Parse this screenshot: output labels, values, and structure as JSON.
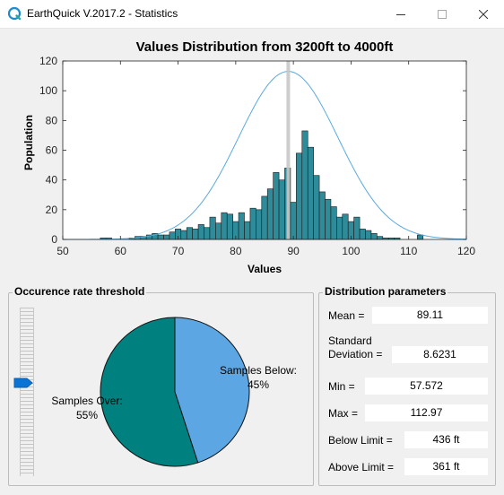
{
  "window": {
    "title": "EarthQuick V.2017.2 - Statistics",
    "accent": "#1e8cc8"
  },
  "chart_data": {
    "type": "bar",
    "title": "Values Distribution from 3200ft to 4000ft",
    "xlabel": "Values",
    "ylabel": "Population",
    "xlim": [
      50,
      120
    ],
    "ylim": [
      0,
      120
    ],
    "xticks": [
      50,
      60,
      70,
      80,
      90,
      100,
      110,
      120
    ],
    "yticks": [
      0,
      20,
      40,
      60,
      80,
      100,
      120
    ],
    "bar_color": "#2e8c9a",
    "curve_color": "#5aa9dd",
    "marker_color": "#c8c8c8",
    "bin_width": 1,
    "bins": [
      {
        "x": 57,
        "y": 1
      },
      {
        "x": 58,
        "y": 1
      },
      {
        "x": 62,
        "y": 1
      },
      {
        "x": 63,
        "y": 2
      },
      {
        "x": 64,
        "y": 2
      },
      {
        "x": 65,
        "y": 3
      },
      {
        "x": 66,
        "y": 4
      },
      {
        "x": 67,
        "y": 3
      },
      {
        "x": 68,
        "y": 3
      },
      {
        "x": 69,
        "y": 5
      },
      {
        "x": 70,
        "y": 7
      },
      {
        "x": 71,
        "y": 6
      },
      {
        "x": 72,
        "y": 8
      },
      {
        "x": 73,
        "y": 7
      },
      {
        "x": 74,
        "y": 10
      },
      {
        "x": 75,
        "y": 8
      },
      {
        "x": 76,
        "y": 15
      },
      {
        "x": 77,
        "y": 11
      },
      {
        "x": 78,
        "y": 18
      },
      {
        "x": 79,
        "y": 17
      },
      {
        "x": 80,
        "y": 12
      },
      {
        "x": 81,
        "y": 18
      },
      {
        "x": 82,
        "y": 12
      },
      {
        "x": 83,
        "y": 21
      },
      {
        "x": 84,
        "y": 20
      },
      {
        "x": 85,
        "y": 29
      },
      {
        "x": 86,
        "y": 34
      },
      {
        "x": 87,
        "y": 45
      },
      {
        "x": 88,
        "y": 40
      },
      {
        "x": 89,
        "y": 48
      },
      {
        "x": 90,
        "y": 25
      },
      {
        "x": 91,
        "y": 58
      },
      {
        "x": 92,
        "y": 73
      },
      {
        "x": 93,
        "y": 62
      },
      {
        "x": 94,
        "y": 43
      },
      {
        "x": 95,
        "y": 32
      },
      {
        "x": 96,
        "y": 27
      },
      {
        "x": 97,
        "y": 22
      },
      {
        "x": 98,
        "y": 15
      },
      {
        "x": 99,
        "y": 17
      },
      {
        "x": 100,
        "y": 12
      },
      {
        "x": 101,
        "y": 15
      },
      {
        "x": 102,
        "y": 7
      },
      {
        "x": 103,
        "y": 6
      },
      {
        "x": 104,
        "y": 4
      },
      {
        "x": 105,
        "y": 2
      },
      {
        "x": 106,
        "y": 1
      },
      {
        "x": 107,
        "y": 1
      },
      {
        "x": 108,
        "y": 1
      },
      {
        "x": 112,
        "y": 3
      }
    ],
    "normal_curve": {
      "mean": 89.11,
      "std": 8.6231,
      "peak": 113
    },
    "threshold_marker": 89.11
  },
  "threshold_panel": {
    "title": "Occurence rate threshold",
    "slider_value": 0.45,
    "pie": {
      "slices": [
        {
          "label": "Samples Below:",
          "pct_label": "45%",
          "value": 45,
          "color": "#5ba6e3"
        },
        {
          "label": "Samples Over:",
          "pct_label": "55%",
          "value": 55,
          "color": "#00807f"
        }
      ]
    }
  },
  "params_panel": {
    "title": "Distribution parameters",
    "rows": [
      {
        "label": "Mean =",
        "value": "89.11"
      },
      {
        "label": "Standard\nDeviation =",
        "value": "8.6231"
      },
      {
        "label": "Min =",
        "value": "57.572"
      },
      {
        "label": "Max =",
        "value": "112.97"
      },
      {
        "label": "Below Limit =",
        "value": "436 ft"
      },
      {
        "label": "Above Limit =",
        "value": "361 ft"
      }
    ]
  }
}
